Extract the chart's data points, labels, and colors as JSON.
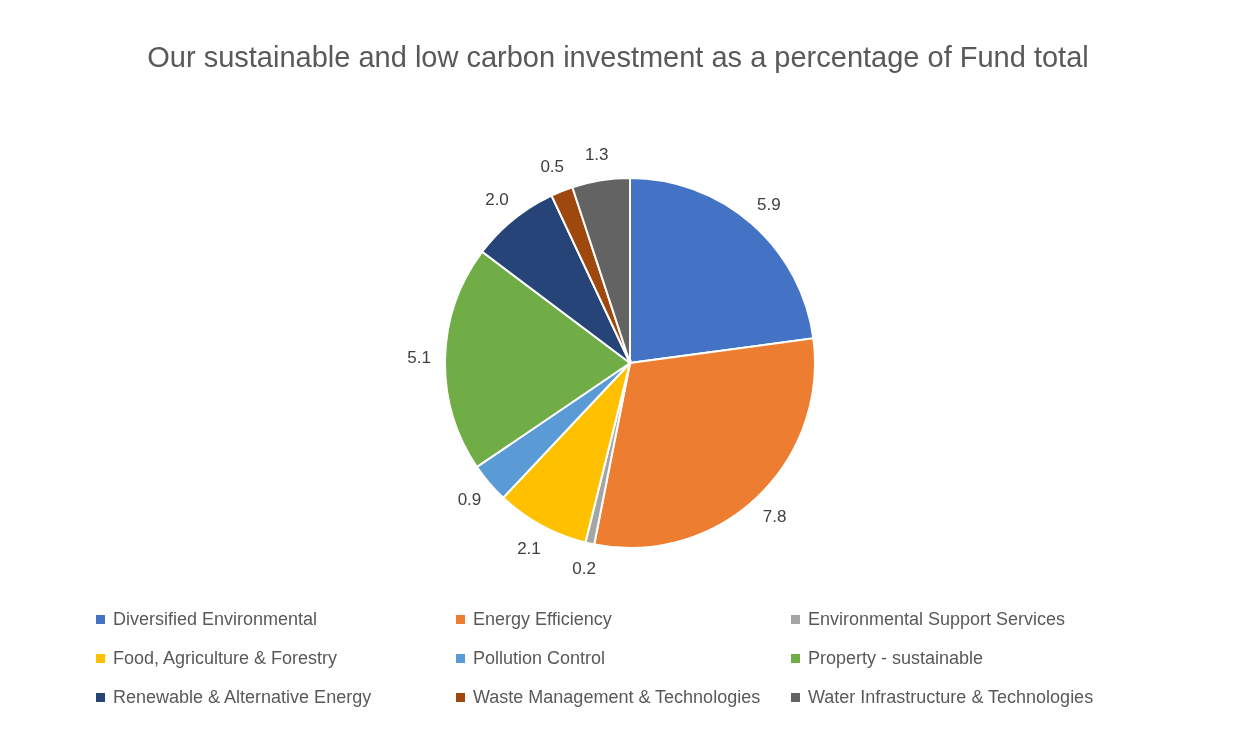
{
  "chart_data": {
    "type": "pie",
    "title": "Our sustainable and low carbon investment as a percentage of Fund total",
    "categories": [
      "Diversified Environmental",
      "Energy Efficiency",
      "Environmental Support Services",
      "Food, Agriculture & Forestry",
      "Pollution Control",
      "Property - sustainable",
      "Renewable & Alternative Energy",
      "Waste Management & Technologies",
      "Water Infrastructure & Technologies"
    ],
    "values": [
      5.9,
      7.8,
      0.2,
      2.1,
      0.9,
      5.1,
      2.0,
      0.5,
      1.3
    ],
    "colors": [
      "#4472c4",
      "#ed7d31",
      "#a5a5a5",
      "#ffc000",
      "#5b9bd5",
      "#70ad47",
      "#264478",
      "#9e480e",
      "#636363"
    ],
    "value_labels": [
      "5.9",
      "7.8",
      "0.2",
      "2.1",
      "0.9",
      "5.1",
      "2.0",
      "0.5",
      "1.3"
    ],
    "legend": "bottom"
  }
}
